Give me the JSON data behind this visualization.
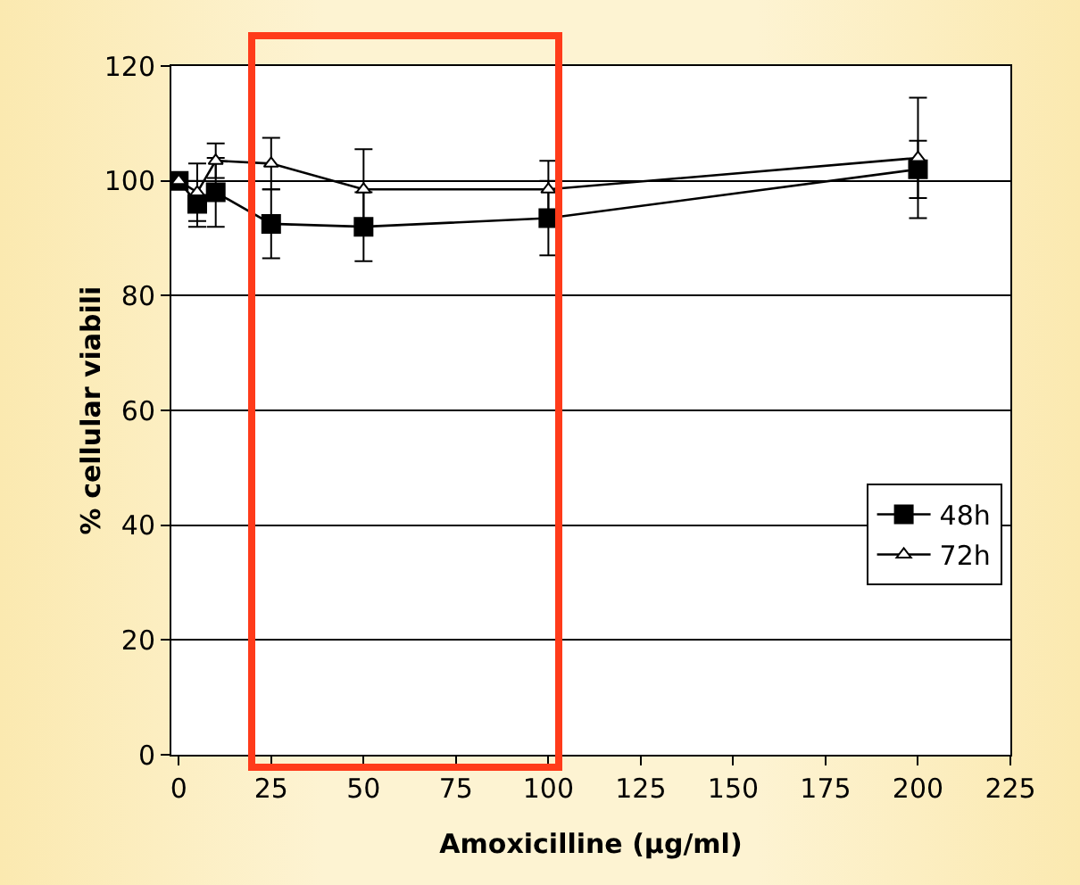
{
  "chart_data": {
    "type": "line",
    "xlabel": "Amoxicilline (µg/ml)",
    "ylabel": "% cellular viabili",
    "x": [
      0,
      5,
      10,
      25,
      50,
      100,
      200
    ],
    "series": [
      {
        "name": "48h",
        "color": "#000000",
        "marker": "square",
        "values": [
          100,
          96,
          98,
          92.5,
          92,
          93.5,
          102
        ],
        "errors": [
          null,
          4,
          6,
          6,
          6,
          6.5,
          5
        ]
      },
      {
        "name": "72h",
        "color": "#000000",
        "marker": "triangle",
        "values": [
          100,
          98,
          103.5,
          103,
          98.5,
          98.5,
          104
        ],
        "errors": [
          null,
          5,
          3,
          4.5,
          7,
          5,
          10.5
        ]
      }
    ],
    "xlim": [
      -2,
      225
    ],
    "xticks": [
      0,
      25,
      50,
      75,
      100,
      125,
      150,
      175,
      200,
      225
    ],
    "ylim": [
      0,
      120
    ],
    "yticks": [
      0,
      20,
      40,
      60,
      80,
      100,
      120
    ],
    "grid": "y",
    "legend": "right",
    "line_style": "solid"
  }
}
